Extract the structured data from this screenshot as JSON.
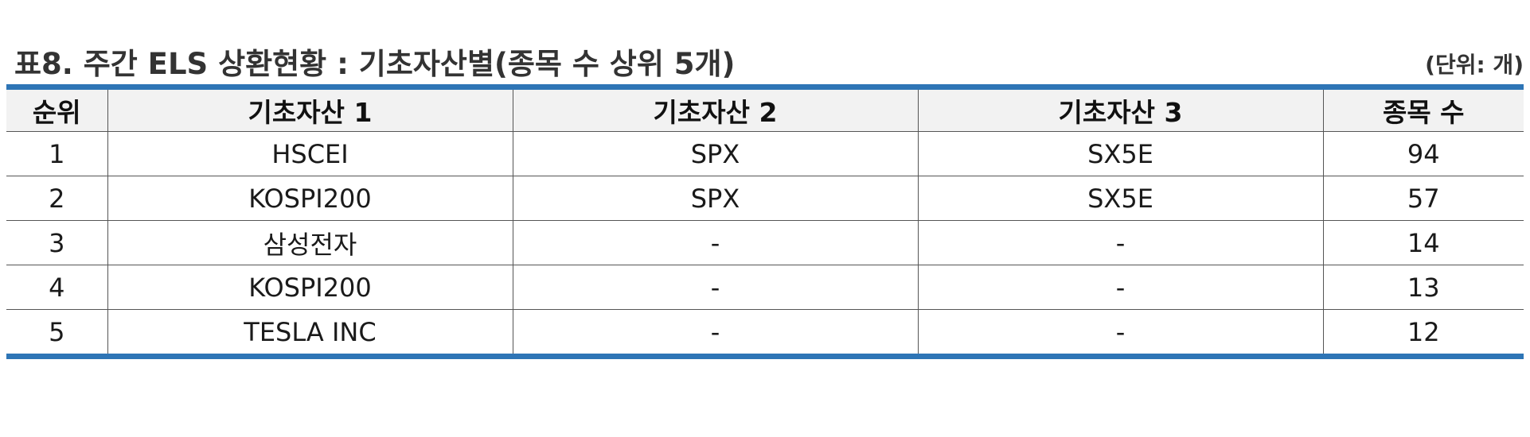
{
  "title": "표8. 주간 ELS 상환현황 : 기초자산별(종목 수 상위 5개)",
  "unit": "(단위: 개)",
  "accent_color": "#2e75b6",
  "header_bg": "#f2f2f2",
  "table": {
    "columns": [
      "순위",
      "기초자산 1",
      "기초자산 2",
      "기초자산 3",
      "종목 수"
    ],
    "rows": [
      [
        "1",
        "HSCEI",
        "SPX",
        "SX5E",
        "94"
      ],
      [
        "2",
        "KOSPI200",
        "SPX",
        "SX5E",
        "57"
      ],
      [
        "3",
        "삼성전자",
        "-",
        "-",
        "14"
      ],
      [
        "4",
        "KOSPI200",
        "-",
        "-",
        "13"
      ],
      [
        "5",
        "TESLA INC",
        "-",
        "-",
        "12"
      ]
    ]
  }
}
